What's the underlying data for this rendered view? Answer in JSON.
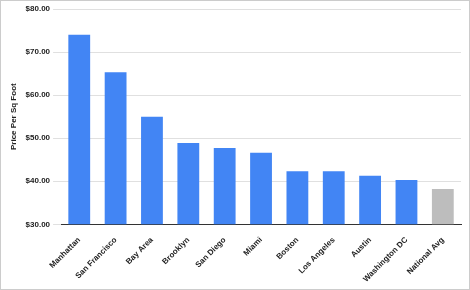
{
  "chart_data": {
    "type": "bar",
    "y_label": "Price Per Sq Foot",
    "categories": [
      "Manhattan",
      "San Francisco",
      "Bay Area",
      "Brooklyn",
      "San Diego",
      "Miami",
      "Boston",
      "Los Angeles",
      "Austin",
      "Washington DC",
      "National Avg"
    ],
    "values": [
      74.0,
      65.3,
      55.0,
      48.9,
      47.7,
      46.6,
      42.3,
      42.3,
      41.3,
      40.3,
      38.2
    ],
    "colors": [
      "#4285f4",
      "#4285f4",
      "#4285f4",
      "#4285f4",
      "#4285f4",
      "#4285f4",
      "#4285f4",
      "#4285f4",
      "#4285f4",
      "#4285f4",
      "#bdbdbd"
    ],
    "ylim": [
      30,
      80
    ],
    "yticks": [
      {
        "value": 30,
        "label": "$30.00"
      },
      {
        "value": 40,
        "label": "$40.00"
      },
      {
        "value": 50,
        "label": "$50.00"
      },
      {
        "value": 60,
        "label": "$60.00"
      },
      {
        "value": 70,
        "label": "$70.00"
      },
      {
        "value": 80,
        "label": "$80.00"
      }
    ],
    "grid": true
  }
}
